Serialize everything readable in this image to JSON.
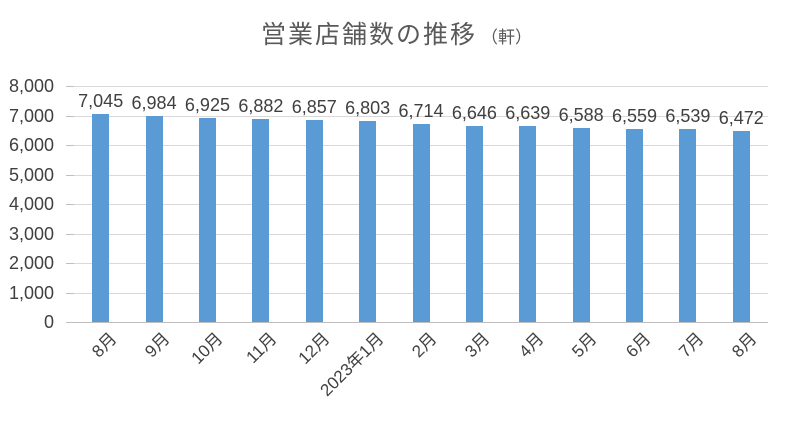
{
  "title": {
    "text": "営業店舗数の推移",
    "unit": "（軒）"
  },
  "chart_data": {
    "type": "bar",
    "title": "営業店舗数の推移（軒）",
    "categories": [
      "8月",
      "9月",
      "10月",
      "11月",
      "12月",
      "2023年1月",
      "2月",
      "3月",
      "4月",
      "5月",
      "6月",
      "7月",
      "8月"
    ],
    "values": [
      7045,
      6984,
      6925,
      6882,
      6857,
      6803,
      6714,
      6646,
      6639,
      6588,
      6559,
      6539,
      6472
    ],
    "value_labels": [
      "7,045",
      "6,984",
      "6,925",
      "6,882",
      "6,857",
      "6,803",
      "6,714",
      "6,646",
      "6,639",
      "6,588",
      "6,559",
      "6,539",
      "6,472"
    ],
    "xlabel": "",
    "ylabel": "",
    "ylim": [
      0,
      8000
    ],
    "ytick_interval": 1000,
    "ytick_labels": [
      "0",
      "1,000",
      "2,000",
      "3,000",
      "4,000",
      "5,000",
      "6,000",
      "7,000",
      "8,000"
    ],
    "grid": true,
    "legend": "none",
    "x_label_rotation_deg": 45,
    "colors": {
      "bar": "#5B9BD5",
      "gridline": "#D9D9D9",
      "axis_line": "#BFBFBF",
      "title_text": "#595959",
      "label_text": "#404040"
    }
  }
}
